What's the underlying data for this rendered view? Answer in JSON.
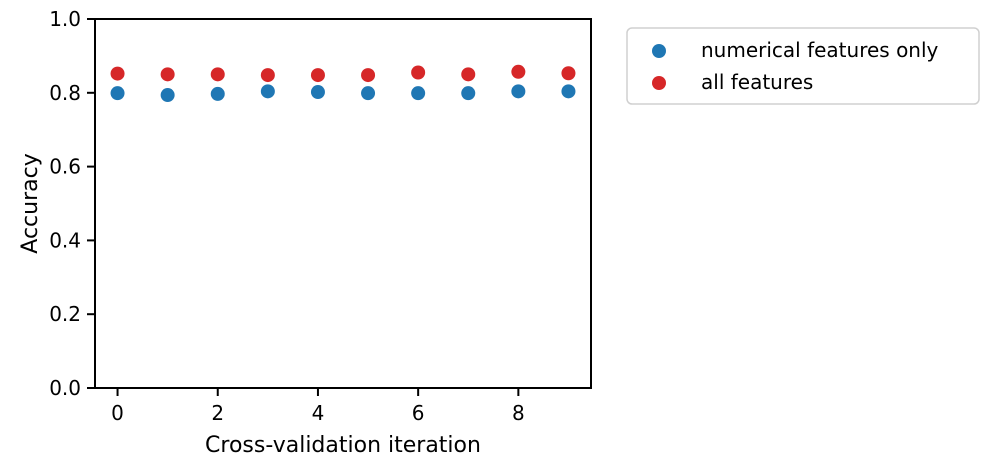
{
  "chart_data": {
    "type": "scatter",
    "title": "",
    "xlabel": "Cross-validation iteration",
    "ylabel": "Accuracy",
    "xlim": [
      -0.45,
      9.45
    ],
    "ylim": [
      0.0,
      1.0
    ],
    "x_ticks": [
      0,
      2,
      4,
      6,
      8
    ],
    "x_tick_labels": [
      "0",
      "2",
      "4",
      "6",
      "8"
    ],
    "y_ticks": [
      0.0,
      0.2,
      0.4,
      0.6,
      0.8,
      1.0
    ],
    "y_tick_labels": [
      "0.0",
      "0.2",
      "0.4",
      "0.6",
      "0.8",
      "1.0"
    ],
    "grid": false,
    "legend_position": "outside-upper-right",
    "x": [
      0,
      1,
      2,
      3,
      4,
      5,
      6,
      7,
      8,
      9
    ],
    "series": [
      {
        "name": "numerical features only",
        "color": "#1f77b4",
        "values": [
          0.799,
          0.794,
          0.797,
          0.804,
          0.802,
          0.799,
          0.799,
          0.799,
          0.804,
          0.804
        ]
      },
      {
        "name": "all features",
        "color": "#d62728",
        "values": [
          0.852,
          0.85,
          0.85,
          0.848,
          0.848,
          0.848,
          0.855,
          0.85,
          0.857,
          0.853
        ]
      }
    ]
  }
}
